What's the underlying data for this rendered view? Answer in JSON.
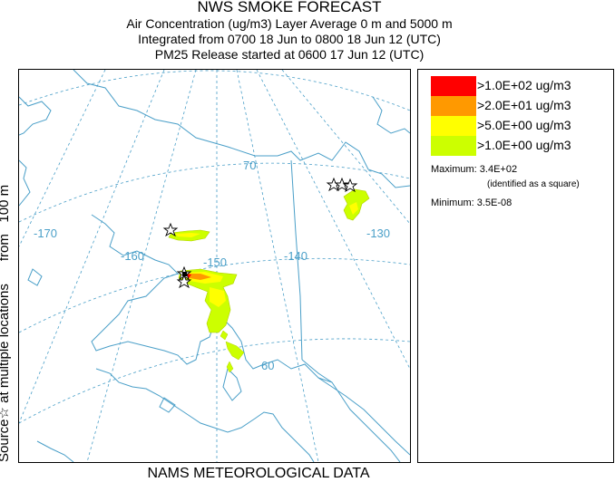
{
  "title": {
    "line1": "NWS SMOKE FORECAST",
    "line2": "Air Concentration (ug/m3) Layer Average    0 m and  5000 m",
    "line3": "Integrated from 0700 18 Jun to 0800 18 Jun 12 (UTC)",
    "line4": "PM25 Release started at 0600 17 Jun 12 (UTC)"
  },
  "side_label": {
    "source": "Source",
    "star": "☆",
    "text": "at multiple locations      from   100 m"
  },
  "footer": "NAMS METEOROLOGICAL DATA",
  "map": {
    "longitude_labels": [
      "-170",
      "-160",
      "-150",
      "-140",
      "-130"
    ],
    "latitude_labels": [
      "70",
      "60"
    ],
    "grid_color": "#4a9fc8",
    "coast_color": "#4a9fc8"
  },
  "legend": {
    "items": [
      {
        "label": ">1.0E+02 ug/m3",
        "color": "#ff0000"
      },
      {
        "label": ">2.0E+01 ug/m3",
        "color": "#ff9900"
      },
      {
        "label": ">5.0E+00 ug/m3",
        "color": "#ffff00"
      },
      {
        "label": ">1.0E+00 ug/m3",
        "color": "#ccff00"
      }
    ],
    "maximum": "Maximum: 3.4E+02",
    "maximum_note": "(identified as a square)",
    "minimum": "Minimum: 3.5E-08"
  }
}
